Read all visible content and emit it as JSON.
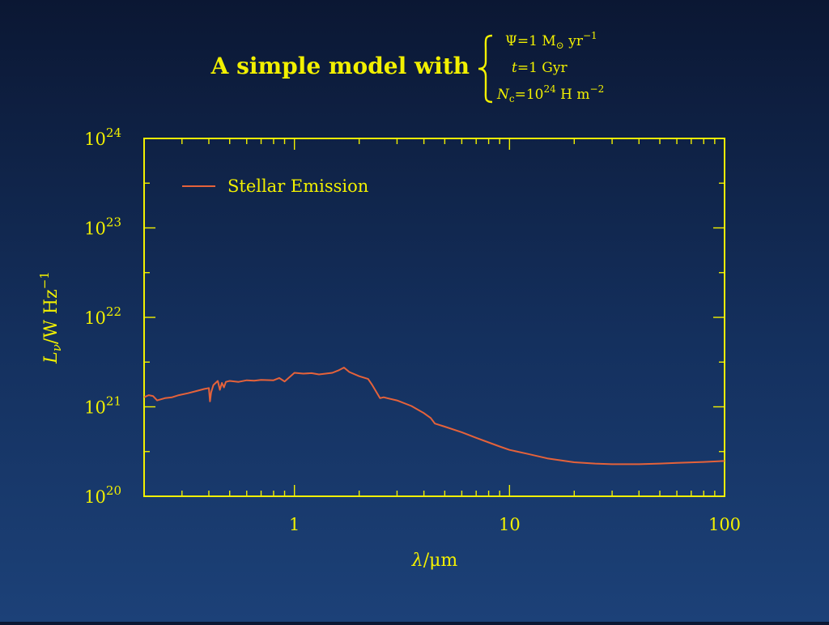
{
  "title": {
    "text": "A simple model with",
    "params": {
      "sfr_lhs": "Ψ",
      "sfr_rhs": "=1 M",
      "sfr_unit": " yr",
      "sfr_exp": "−1",
      "age_lhs": "t",
      "age_rhs": "=1 Gyr",
      "col_lhs": "N",
      "col_sub": "c",
      "col_rhs": "=10",
      "col_exp": "24",
      "col_unit": " H m",
      "col_unit_exp": "−2"
    }
  },
  "colors": {
    "text": "#f2f000",
    "axis": "#f2f000",
    "series": "#e5623a"
  },
  "chart_data": {
    "type": "line",
    "xscale": "log",
    "yscale": "log",
    "xlim": [
      0.2,
      100
    ],
    "ylim": [
      1e+20,
      1e+24
    ],
    "xlabel": {
      "lambda": "λ",
      "unit": "/μm"
    },
    "ylabel": {
      "L": "L",
      "sub": "ν",
      "unit": "/W Hz",
      "exp": "−1"
    },
    "xticks": [
      {
        "value": 1,
        "label": "1"
      },
      {
        "value": 10,
        "label": "10"
      },
      {
        "value": 100,
        "label": "100"
      }
    ],
    "yticks": [
      {
        "value": 1e+20,
        "base": "10",
        "exp": "20"
      },
      {
        "value": 1e+21,
        "base": "10",
        "exp": "21"
      },
      {
        "value": 1e+22,
        "base": "10",
        "exp": "22"
      },
      {
        "value": 1e+23,
        "base": "10",
        "exp": "23"
      },
      {
        "value": 1e+24,
        "base": "10",
        "exp": "24"
      }
    ],
    "legend_position": "top-left",
    "series": [
      {
        "name": "Stellar Emission",
        "x": [
          0.2,
          0.21,
          0.22,
          0.23,
          0.25,
          0.27,
          0.29,
          0.32,
          0.35,
          0.38,
          0.4,
          0.405,
          0.41,
          0.42,
          0.44,
          0.45,
          0.46,
          0.47,
          0.48,
          0.5,
          0.55,
          0.6,
          0.65,
          0.7,
          0.8,
          0.85,
          0.9,
          1.0,
          1.1,
          1.2,
          1.3,
          1.5,
          1.6,
          1.7,
          1.8,
          2.0,
          2.2,
          2.3,
          2.5,
          2.6,
          2.7,
          3.0,
          3.5,
          4.0,
          4.3,
          4.5,
          5,
          6,
          7,
          8,
          9,
          10,
          12,
          15,
          20,
          25,
          30,
          40,
          50,
          60,
          80,
          100
        ],
        "y": [
          1.28e+21,
          1.35e+21,
          1.32e+21,
          1.18e+21,
          1.25e+21,
          1.28e+21,
          1.35e+21,
          1.42e+21,
          1.5e+21,
          1.58e+21,
          1.62e+21,
          1.15e+21,
          1.45e+21,
          1.75e+21,
          1.95e+21,
          1.55e+21,
          1.85e+21,
          1.65e+21,
          1.9e+21,
          1.95e+21,
          1.9e+21,
          1.98e+21,
          1.96e+21,
          2e+21,
          1.98e+21,
          2.1e+21,
          1.92e+21,
          2.4e+21,
          2.35e+21,
          2.38e+21,
          2.3e+21,
          2.4e+21,
          2.55e+21,
          2.75e+21,
          2.45e+21,
          2.2e+21,
          2.05e+21,
          1.75e+21,
          1.25e+21,
          1.28e+21,
          1.25e+21,
          1.18e+21,
          1.02e+21,
          8.5e+20,
          7.5e+20,
          6.5e+20,
          6e+20,
          5.2e+20,
          4.5e+20,
          4e+20,
          3.6e+20,
          3.3e+20,
          3e+20,
          2.65e+20,
          2.4e+20,
          2.32e+20,
          2.28e+20,
          2.28e+20,
          2.32e+20,
          2.36e+20,
          2.42e+20,
          2.48e+20
        ]
      }
    ]
  }
}
